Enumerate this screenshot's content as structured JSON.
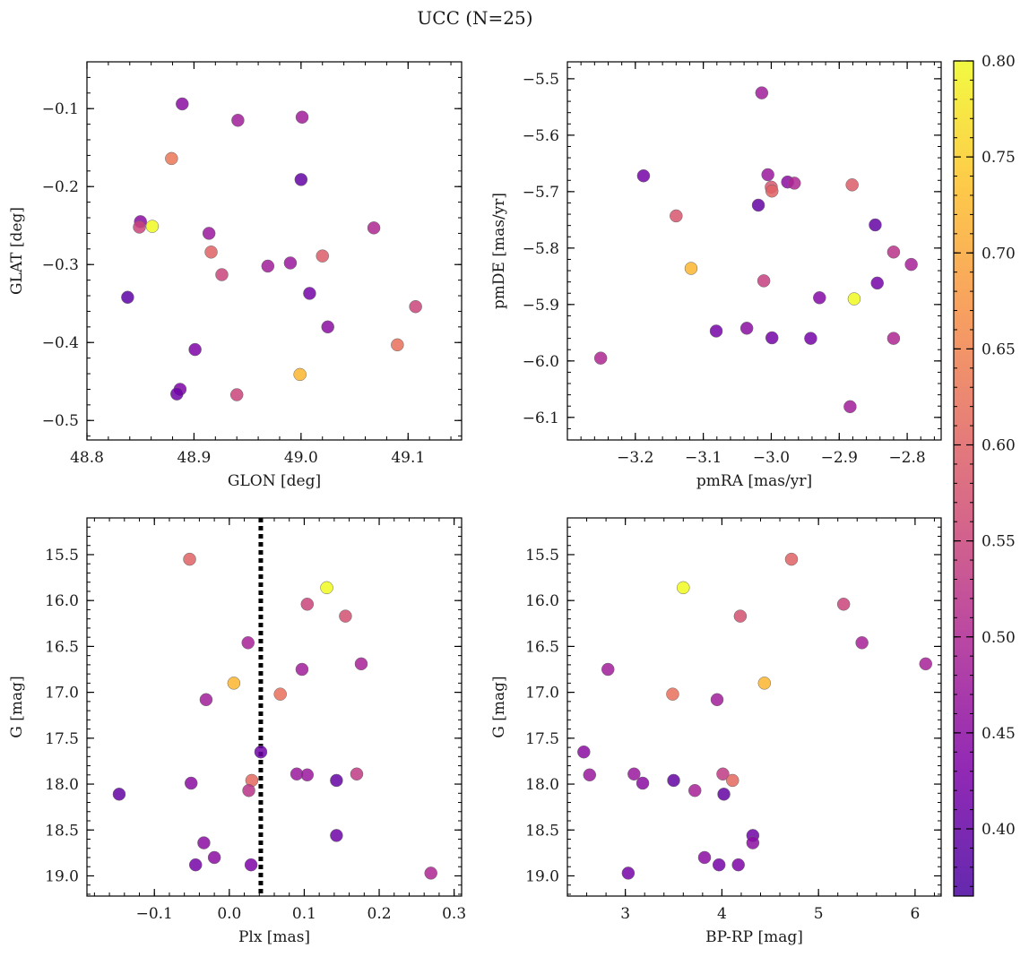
{
  "figure": {
    "title": "UCC (N=25)"
  },
  "colorbar": {
    "vmin": 0.365,
    "vmax": 0.8,
    "ticks": [
      0.4,
      0.45,
      0.5,
      0.55,
      0.6,
      0.65,
      0.7,
      0.75,
      0.8
    ],
    "tick_labels": [
      "0.40",
      "0.45",
      "0.50",
      "0.55",
      "0.60",
      "0.65",
      "0.70",
      "0.75",
      "0.80"
    ],
    "colormap": "plasma"
  },
  "chart_data": [
    {
      "type": "scatter",
      "xlabel": "GLON [deg]",
      "ylabel": "GLAT [deg]",
      "xlim": [
        48.8,
        49.15
      ],
      "ylim": [
        -0.525,
        -0.04
      ],
      "xticks": [
        48.8,
        48.9,
        49.0,
        49.1
      ],
      "xtick_labels": [
        "48.8",
        "48.9",
        "49.0",
        "49.1"
      ],
      "yticks": [
        -0.1,
        -0.2,
        -0.3,
        -0.4,
        -0.5
      ],
      "ytick_labels": [
        "−0.1",
        "−0.2",
        "−0.3",
        "−0.4",
        "−0.5"
      ],
      "x": [
        48.889,
        48.941,
        49.001,
        48.879,
        49.0,
        48.85,
        48.861,
        48.849,
        48.914,
        48.916,
        49.068,
        48.969,
        48.99,
        48.926,
        49.02,
        48.838,
        49.008,
        49.025,
        49.107,
        48.901,
        49.09,
        48.999,
        48.887,
        48.884,
        48.94
      ],
      "y": [
        -0.094,
        -0.115,
        -0.111,
        -0.164,
        -0.191,
        -0.245,
        -0.251,
        -0.252,
        -0.26,
        -0.284,
        -0.253,
        -0.302,
        -0.298,
        -0.313,
        -0.289,
        -0.342,
        -0.337,
        -0.38,
        -0.354,
        -0.409,
        -0.403,
        -0.441,
        -0.46,
        -0.466,
        -0.467
      ],
      "c": [
        0.45,
        0.48,
        0.48,
        0.63,
        0.4,
        0.45,
        0.8,
        0.55,
        0.47,
        0.6,
        0.5,
        0.48,
        0.47,
        0.55,
        0.59,
        0.39,
        0.42,
        0.45,
        0.55,
        0.43,
        0.62,
        0.72,
        0.43,
        0.41,
        0.55
      ]
    },
    {
      "type": "scatter",
      "xlabel": "pmRA [mas/yr]",
      "ylabel": "pmDE [mas/yr]",
      "xlim": [
        -3.3,
        -2.75
      ],
      "ylim": [
        -6.14,
        -5.47
      ],
      "xticks": [
        -3.2,
        -3.1,
        -3.0,
        -2.9,
        -2.8
      ],
      "xtick_labels": [
        "−3.2",
        "−3.1",
        "−3.0",
        "−2.9",
        "−2.8"
      ],
      "yticks": [
        -5.5,
        -5.6,
        -5.7,
        -5.8,
        -5.9,
        -6.0,
        -6.1
      ],
      "ytick_labels": [
        "−5.5",
        "−5.6",
        "−5.7",
        "−5.8",
        "−5.9",
        "−6.0",
        "−6.1"
      ],
      "x": [
        -3.014,
        -3.188,
        -3.005,
        -2.976,
        -2.966,
        -3.0,
        -2.999,
        -2.881,
        -3.019,
        -3.14,
        -2.847,
        -2.82,
        -2.794,
        -3.118,
        -3.011,
        -2.844,
        -2.929,
        -2.878,
        -3.081,
        -3.036,
        -2.999,
        -2.942,
        -2.82,
        -3.251,
        -2.884
      ],
      "x_note": "",
      "y": [
        -5.525,
        -5.672,
        -5.67,
        -5.683,
        -5.685,
        -5.692,
        -5.699,
        -5.688,
        -5.724,
        -5.743,
        -5.759,
        -5.807,
        -5.829,
        -5.836,
        -5.858,
        -5.862,
        -5.888,
        -5.89,
        -5.947,
        -5.942,
        -5.959,
        -5.96,
        -5.96,
        -5.995,
        -6.081
      ],
      "c": [
        0.48,
        0.42,
        0.47,
        0.45,
        0.5,
        0.58,
        0.6,
        0.59,
        0.4,
        0.58,
        0.4,
        0.52,
        0.49,
        0.72,
        0.54,
        0.42,
        0.44,
        0.8,
        0.42,
        0.45,
        0.42,
        0.42,
        0.5,
        0.5,
        0.48
      ]
    },
    {
      "type": "scatter",
      "xlabel": "Plx [mas]",
      "ylabel": "G [mag]",
      "xlim": [
        -0.19,
        0.31
      ],
      "ylim": [
        19.22,
        15.1
      ],
      "xticks": [
        -0.1,
        0.0,
        0.1,
        0.2,
        0.3
      ],
      "xtick_labels": [
        "−0.1",
        "0.0",
        "0.1",
        "0.2",
        "0.3"
      ],
      "yticks": [
        15.5,
        16.0,
        16.5,
        17.0,
        17.5,
        18.0,
        18.5,
        19.0
      ],
      "ytick_labels": [
        "15.5",
        "16.0",
        "16.5",
        "17.0",
        "17.5",
        "18.0",
        "18.5",
        "19.0"
      ],
      "vline": 0.042,
      "x": [
        -0.053,
        0.13,
        0.104,
        0.155,
        0.025,
        0.176,
        0.097,
        0.006,
        0.068,
        -0.031,
        0.042,
        0.09,
        0.104,
        0.17,
        0.03,
        0.143,
        -0.051,
        0.026,
        -0.147,
        0.143,
        -0.034,
        -0.02,
        -0.045,
        0.029,
        0.269
      ],
      "y": [
        15.55,
        15.86,
        16.04,
        16.17,
        16.46,
        16.69,
        16.75,
        16.9,
        17.02,
        17.08,
        17.65,
        17.89,
        17.9,
        17.89,
        17.96,
        17.96,
        17.99,
        18.07,
        18.11,
        18.56,
        18.64,
        18.8,
        18.88,
        18.88,
        18.97
      ],
      "c": [
        0.6,
        0.8,
        0.55,
        0.57,
        0.49,
        0.49,
        0.48,
        0.72,
        0.62,
        0.48,
        0.41,
        0.47,
        0.47,
        0.53,
        0.61,
        0.4,
        0.45,
        0.52,
        0.4,
        0.41,
        0.45,
        0.45,
        0.42,
        0.43,
        0.5
      ]
    },
    {
      "type": "scatter",
      "xlabel": "BP-RP [mag]",
      "ylabel": "G [mag]",
      "xlim": [
        2.4,
        6.27
      ],
      "ylim": [
        19.22,
        15.1
      ],
      "xticks": [
        3,
        4,
        5,
        6
      ],
      "xtick_labels": [
        "3",
        "4",
        "5",
        "6"
      ],
      "yticks": [
        15.5,
        16.0,
        16.5,
        17.0,
        17.5,
        18.0,
        18.5,
        19.0
      ],
      "ytick_labels": [
        "15.5",
        "16.0",
        "16.5",
        "17.0",
        "17.5",
        "18.0",
        "18.5",
        "19.0"
      ],
      "x": [
        4.72,
        3.6,
        5.26,
        4.19,
        5.45,
        6.11,
        2.82,
        4.44,
        3.49,
        3.95,
        2.57,
        3.09,
        4.01,
        2.63,
        4.11,
        3.5,
        3.18,
        3.72,
        4.02,
        4.32,
        4.32,
        3.82,
        3.97,
        4.17,
        3.03
      ],
      "y": [
        15.55,
        15.86,
        16.04,
        16.17,
        16.46,
        16.69,
        16.75,
        16.9,
        17.02,
        17.08,
        17.65,
        17.89,
        17.89,
        17.9,
        17.96,
        17.96,
        17.99,
        18.07,
        18.11,
        18.56,
        18.64,
        18.8,
        18.88,
        18.88,
        18.97
      ],
      "c": [
        0.6,
        0.8,
        0.55,
        0.57,
        0.49,
        0.49,
        0.48,
        0.72,
        0.62,
        0.48,
        0.45,
        0.47,
        0.53,
        0.47,
        0.61,
        0.4,
        0.45,
        0.49,
        0.4,
        0.41,
        0.45,
        0.45,
        0.42,
        0.43,
        0.42
      ]
    }
  ]
}
